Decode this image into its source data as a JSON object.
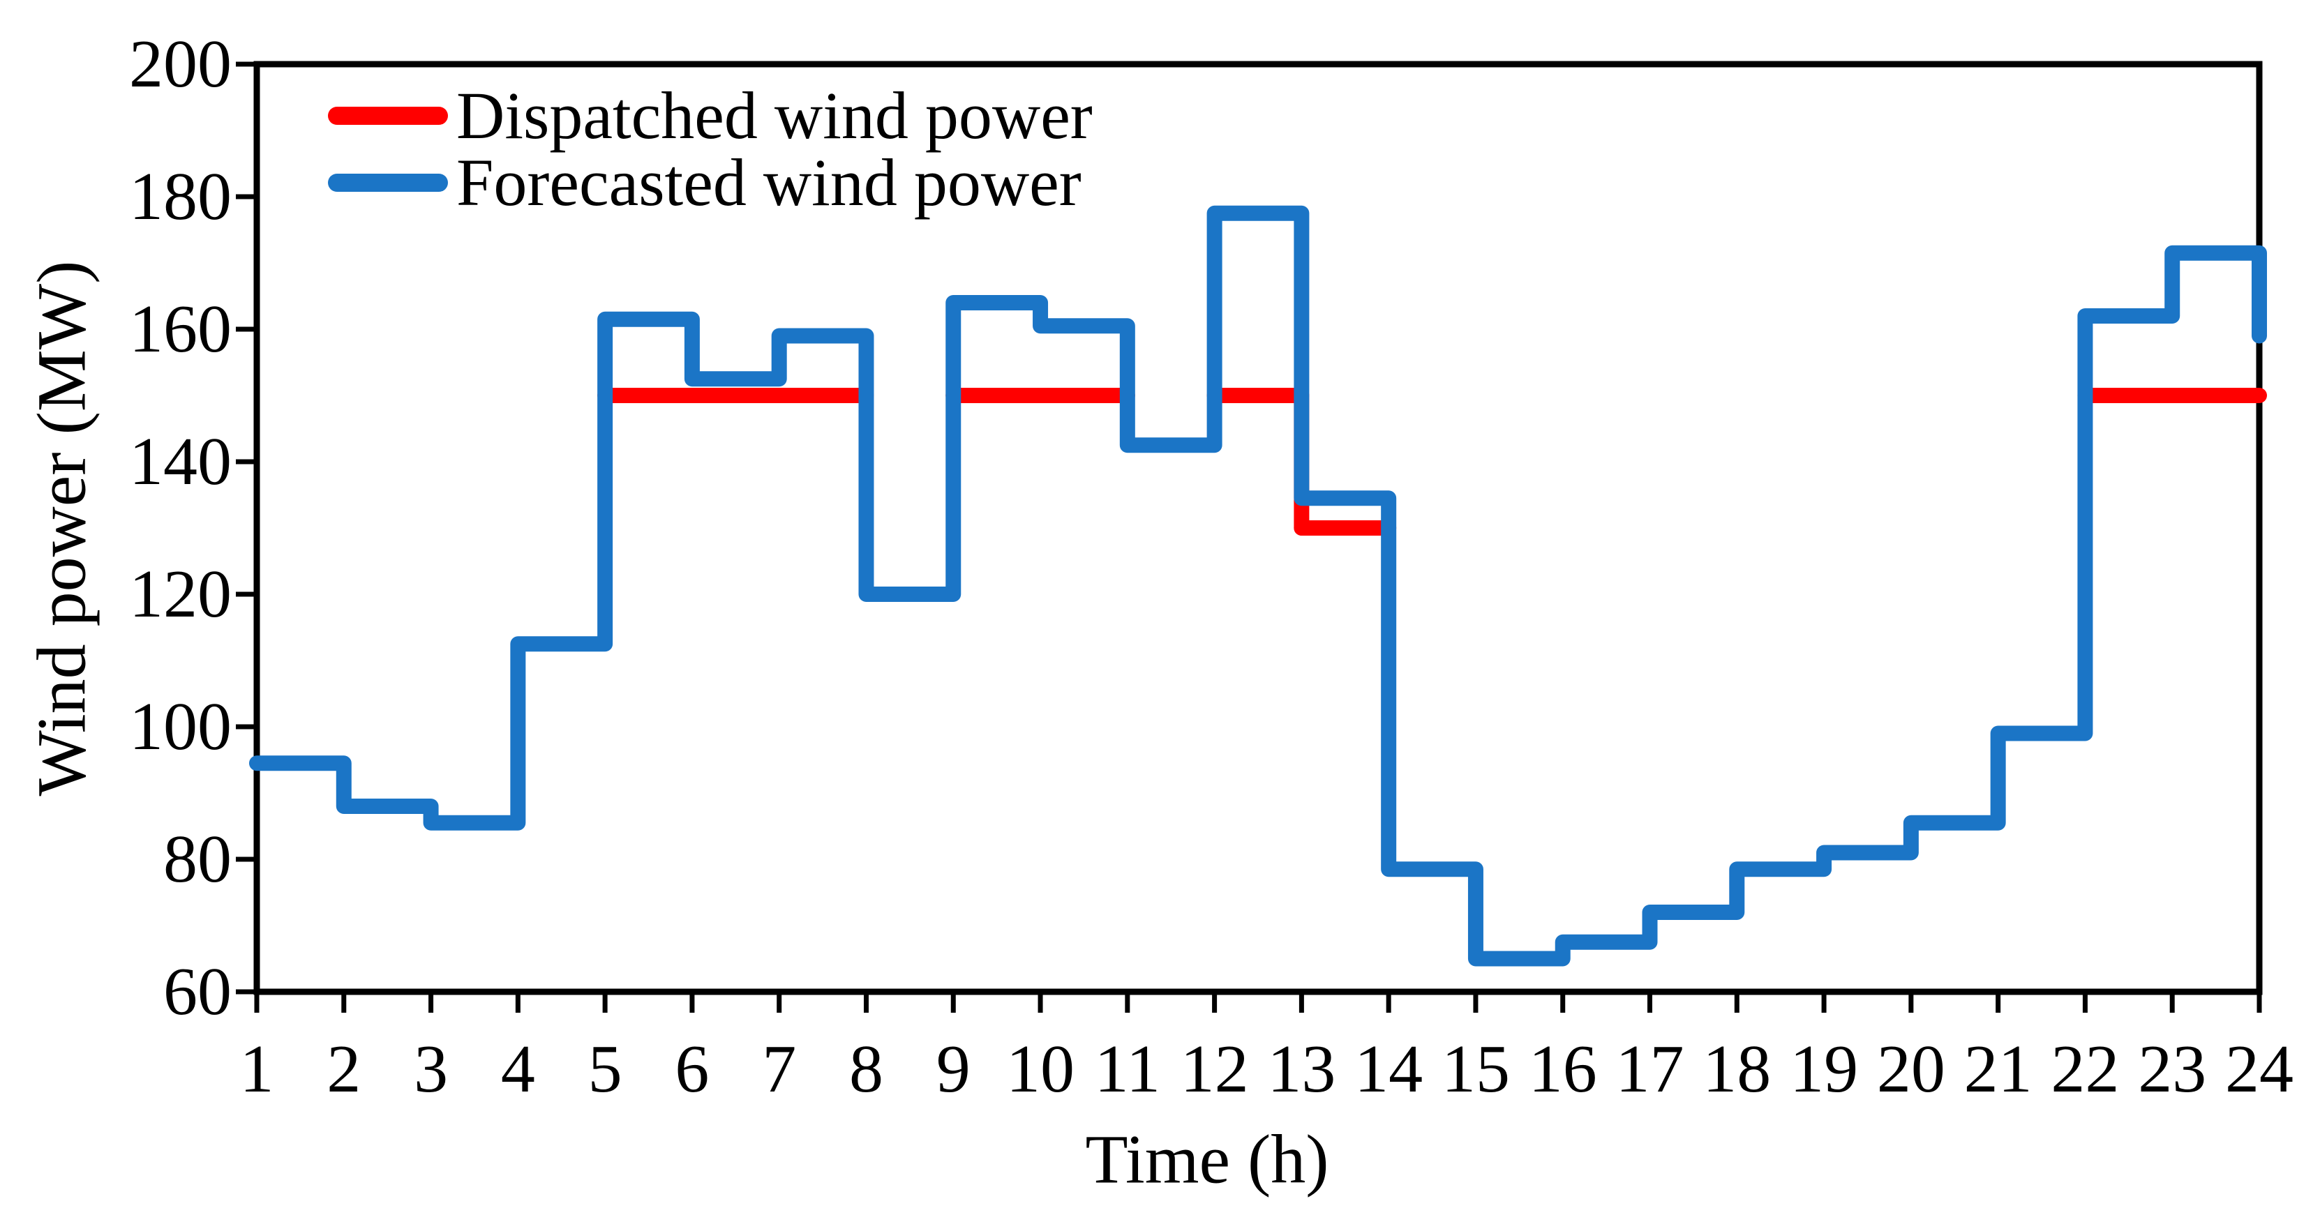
{
  "chart_data": {
    "type": "line",
    "subtype": "step-post",
    "title": "",
    "xlabel": "Time (h)",
    "ylabel": "Wind power (MW)",
    "xlim": [
      1,
      24
    ],
    "ylim": [
      60,
      200
    ],
    "xticks": [
      1,
      2,
      3,
      4,
      5,
      6,
      7,
      8,
      9,
      10,
      11,
      12,
      13,
      14,
      15,
      16,
      17,
      18,
      19,
      20,
      21,
      22,
      23,
      24
    ],
    "yticks": [
      60,
      80,
      100,
      120,
      140,
      160,
      180,
      200
    ],
    "grid": false,
    "frame": "box",
    "legend_position": "top-left-inside",
    "axis_color": "#000000",
    "series": [
      {
        "name": "Dispatched wind power",
        "color": "#FF0000",
        "style": "step-segments",
        "segments": [
          {
            "from_hour": 5,
            "to_hour": 8,
            "value_mw": 150
          },
          {
            "from_hour": 9,
            "to_hour": 11,
            "value_mw": 150
          },
          {
            "from_hour": 12,
            "to_hour": 13,
            "value_mw": 150
          },
          {
            "from_hour": 13,
            "to_hour": 14,
            "value_mw": 130
          },
          {
            "from_hour": 22,
            "to_hour": 24,
            "value_mw": 150
          }
        ]
      },
      {
        "name": "Forecasted wind power",
        "color": "#1B75C6",
        "hours": [
          1,
          2,
          3,
          4,
          5,
          6,
          7,
          8,
          9,
          10,
          11,
          12,
          13,
          14,
          15,
          16,
          17,
          18,
          19,
          20,
          21,
          22,
          23,
          24
        ],
        "values_mw": [
          94.5,
          88,
          85.5,
          112.5,
          161.5,
          152.5,
          159,
          120,
          164,
          160.5,
          142.5,
          177.5,
          134.5,
          78.5,
          65,
          67.5,
          72,
          78.5,
          81,
          85.5,
          99,
          162,
          171.5,
          159
        ]
      }
    ]
  }
}
